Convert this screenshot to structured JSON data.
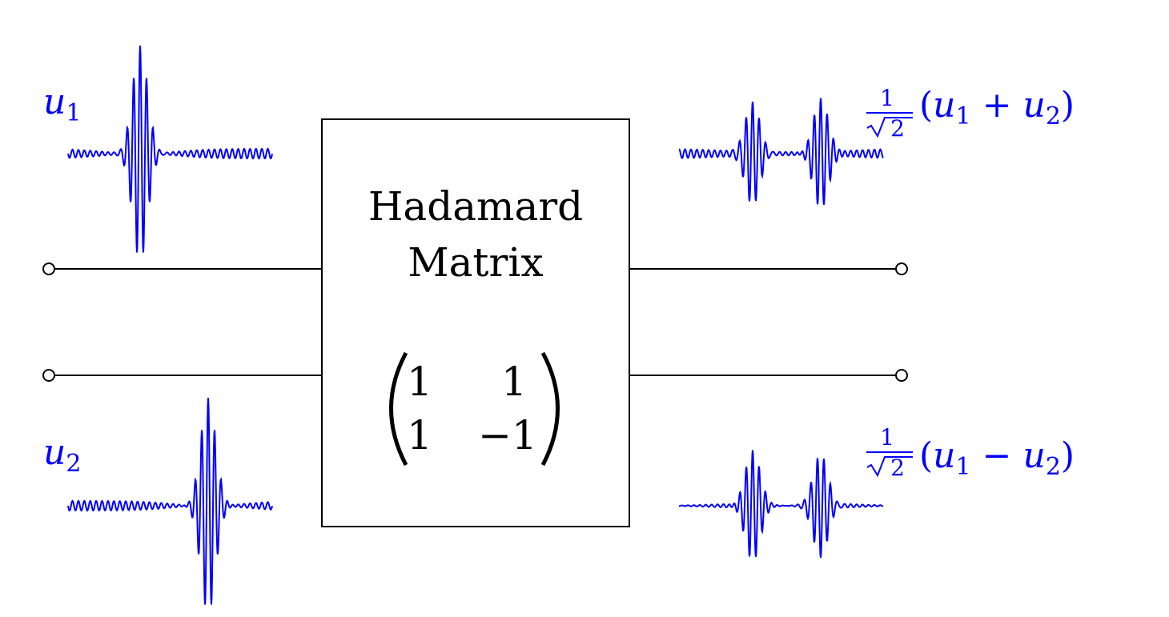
{
  "colors": {
    "wave": "#0000ff",
    "line": "#000000",
    "background": "#ffffff"
  },
  "block": {
    "title_line1": "Hadamard",
    "title_line2": "Matrix",
    "matrix": {
      "r1c1": "1",
      "r1c2": "1",
      "r2c1": "1",
      "r2c2": "−1"
    }
  },
  "inputs": {
    "top": {
      "var": "u",
      "sub": "1"
    },
    "bottom": {
      "var": "u",
      "sub": "2"
    }
  },
  "outputs": {
    "top": {
      "num": "1",
      "den": "2",
      "open": "(",
      "a": "u",
      "a_sub": "1",
      "op": "+",
      "b": "u",
      "b_sub": "2",
      "close": ")"
    },
    "bottom": {
      "num": "1",
      "den": "2",
      "open": "(",
      "a": "u",
      "a_sub": "1",
      "op": "−",
      "b": "u",
      "b_sub": "2",
      "close": ")"
    }
  }
}
